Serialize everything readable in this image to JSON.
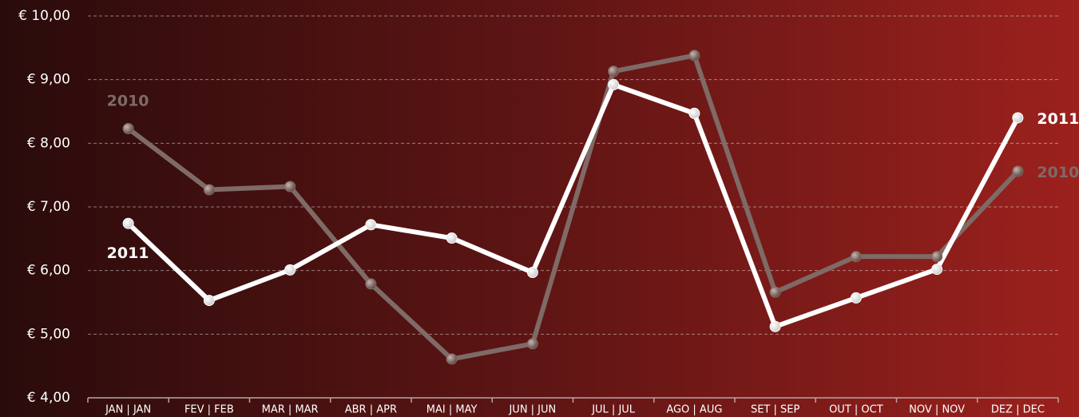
{
  "chart_data": {
    "type": "line",
    "categories": [
      "JAN | JAN",
      "FEV | FEB",
      "MAR | MAR",
      "ABR | APR",
      "MAI | MAY",
      "JUN | JUN",
      "JUL | JUL",
      "AGO | AUG",
      "SET | SEP",
      "OUT | OCT",
      "NOV | NOV",
      "DEZ | DEC"
    ],
    "series": [
      {
        "name": "2010",
        "color": "#7f6a66",
        "values": [
          8.23,
          7.27,
          7.32,
          5.79,
          4.61,
          4.85,
          9.13,
          9.38,
          5.66,
          6.22,
          6.22,
          7.56
        ]
      },
      {
        "name": "2011",
        "color": "#ffffff",
        "values": [
          6.74,
          5.53,
          6.01,
          6.72,
          6.51,
          5.97,
          8.92,
          8.47,
          5.12,
          5.57,
          6.02,
          8.4
        ]
      }
    ],
    "ylim": [
      4,
      10
    ],
    "yticks": [
      {
        "value": 4,
        "label": "€ 4,00"
      },
      {
        "value": 5,
        "label": "€ 5,00"
      },
      {
        "value": 6,
        "label": "€ 6,00"
      },
      {
        "value": 7,
        "label": "€ 7,00"
      },
      {
        "value": 8,
        "label": "€ 8,00"
      },
      {
        "value": 9,
        "label": "€ 9,00"
      },
      {
        "value": 10,
        "label": "€ 10,00"
      }
    ],
    "grid": true
  }
}
